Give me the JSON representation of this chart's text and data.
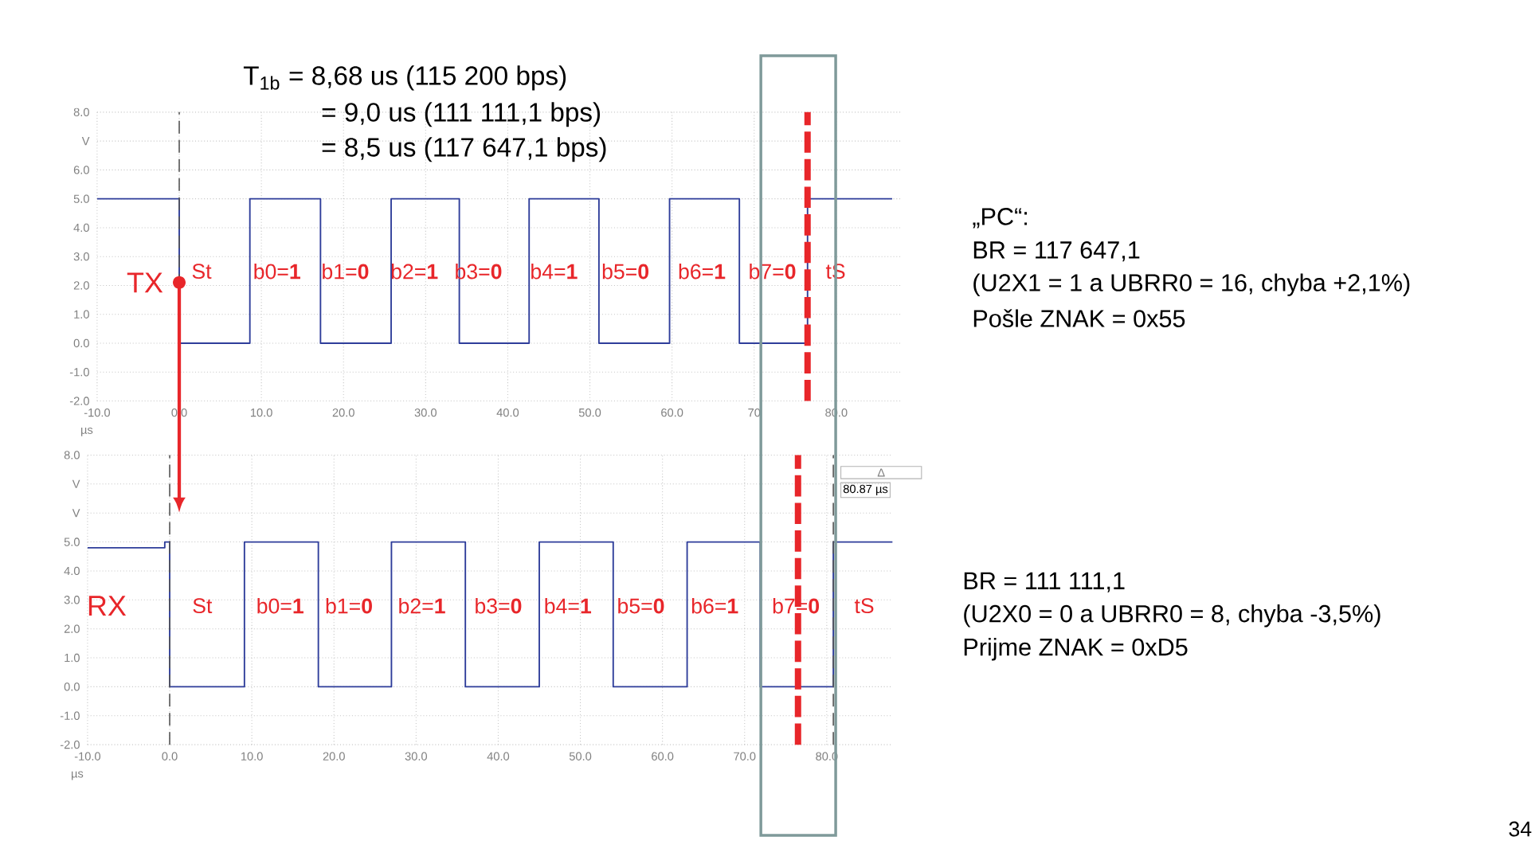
{
  "chart_data": [
    {
      "type": "step",
      "xlim": [
        -10,
        88
      ],
      "ylim": [
        -2,
        8
      ],
      "grid": true,
      "xlabel": "µs",
      "xticks": [
        {
          "value": -10,
          "label": "-10.0"
        },
        {
          "value": 0,
          "label": "0.0"
        },
        {
          "value": 10,
          "label": "10.0"
        },
        {
          "value": 20,
          "label": "20.0"
        },
        {
          "value": 30,
          "label": "30.0"
        },
        {
          "value": 40,
          "label": "40.0"
        },
        {
          "value": 50,
          "label": "50.0"
        },
        {
          "value": 60,
          "label": "60.0"
        },
        {
          "value": 70,
          "label": "70"
        },
        {
          "value": 80,
          "label": "80.0"
        }
      ],
      "yticks": [
        {
          "value": -2,
          "label": "-2.0"
        },
        {
          "value": -1,
          "label": "-1.0"
        },
        {
          "value": 0,
          "label": "0.0"
        },
        {
          "value": 1,
          "label": "1.0"
        },
        {
          "value": 2,
          "label": "2.0"
        },
        {
          "value": 3,
          "label": "3.0"
        },
        {
          "value": 4,
          "label": "4.0"
        },
        {
          "value": 5,
          "label": "5.0"
        },
        {
          "value": 6,
          "label": "6.0"
        },
        {
          "value": 7,
          "label": "V"
        },
        {
          "value": 8,
          "label": "8.0"
        }
      ],
      "x": [
        -10,
        0,
        8.6,
        17.2,
        25.8,
        34.1,
        42.6,
        51.1,
        59.7,
        68.2,
        76.5,
        86.8
      ],
      "series": [
        {
          "color": "#2e3d9a",
          "values": [
            5,
            0,
            5,
            0,
            5,
            0,
            5,
            0,
            5,
            0,
            5,
            5
          ]
        }
      ],
      "ref_lines": [
        {
          "axis": "x",
          "value": 0,
          "color": "#555555",
          "line_style": "dashed"
        },
        {
          "axis": "x",
          "value": 76.5,
          "color": "#e8262a",
          "line_style": "dashed"
        }
      ],
      "annotations": [
        "T$_{1b}$ = 8,68 us (115 200 bps)",
        "= 9,0 us (111 111,1 bps)",
        "= 8,5 us (117 647,1 bps)",
        "„PC“:",
        "BR = 117 647,1",
        "(U2X1 = 1 a UBRR0 = 16, chyba +2,1%)",
        "Pošle ZNAK = 0x55",
        {
          "text": "TX",
          "x": 0,
          "y": 2.1
        },
        "St",
        "b0=**1**",
        "b1=**0**",
        "b2=**1**",
        "b3=**0**",
        "b4=**1**",
        "b5=**0**",
        "b6=**1**",
        "b7=**0**",
        "tS"
      ]
    },
    {
      "type": "step",
      "xlim": [
        -10,
        88
      ],
      "ylim": [
        -2,
        8
      ],
      "grid": true,
      "xlabel": "µs",
      "xticks": [
        {
          "value": -10,
          "label": "-10.0"
        },
        {
          "value": 0,
          "label": "0.0"
        },
        {
          "value": 10,
          "label": "10.0"
        },
        {
          "value": 20,
          "label": "20.0"
        },
        {
          "value": 30,
          "label": "30.0"
        },
        {
          "value": 40,
          "label": "40.0"
        },
        {
          "value": 50,
          "label": "50.0"
        },
        {
          "value": 60,
          "label": "60.0"
        },
        {
          "value": 70,
          "label": "70.0"
        },
        {
          "value": 80,
          "label": "80.0"
        }
      ],
      "yticks": [
        {
          "value": -2,
          "label": "-2.0"
        },
        {
          "value": -1,
          "label": "-1.0"
        },
        {
          "value": 0,
          "label": "0.0"
        },
        {
          "value": 1,
          "label": "1.0"
        },
        {
          "value": 2,
          "label": "2.0"
        },
        {
          "value": 3,
          "label": "3.0"
        },
        {
          "value": 4,
          "label": "4.0"
        },
        {
          "value": 5,
          "label": "5.0"
        },
        {
          "value": 6,
          "label": "V"
        },
        {
          "value": 7,
          "label": "V"
        },
        {
          "value": 8,
          "label": "8.0"
        }
      ],
      "x": [
        -10,
        -0.6,
        0,
        9.1,
        18.1,
        27,
        36,
        45,
        54,
        63,
        71.9,
        80.8,
        88
      ],
      "series": [
        {
          "color": "#2e3d9a",
          "values": [
            4.8,
            5,
            0,
            5,
            0,
            5,
            0,
            5,
            0,
            5,
            0,
            5,
            5
          ]
        }
      ],
      "ref_lines": [
        {
          "axis": "x",
          "value": 0,
          "color": "#555555",
          "line_style": "dashed"
        },
        {
          "axis": "x",
          "value": 76.5,
          "color": "#e8262a",
          "line_style": "dashed"
        },
        {
          "axis": "x",
          "value": 80.8,
          "color": "#555555",
          "line_style": "dashed"
        }
      ],
      "annotations": [
        "BR = 111 111,1",
        "(U2X0 = 0 a UBRR0 = 8, chyba -3,5%)",
        "Prijme ZNAK = 0xD5",
        "Δ",
        "80.87 µs",
        "34",
        "RX",
        "St",
        "b0=**1**",
        "b1=**0**",
        "b2=**1**",
        "b3=**0**",
        "b4=**1**",
        "b5=**0**",
        "b6=**1**",
        "b7=**0**",
        "tS"
      ]
    }
  ]
}
